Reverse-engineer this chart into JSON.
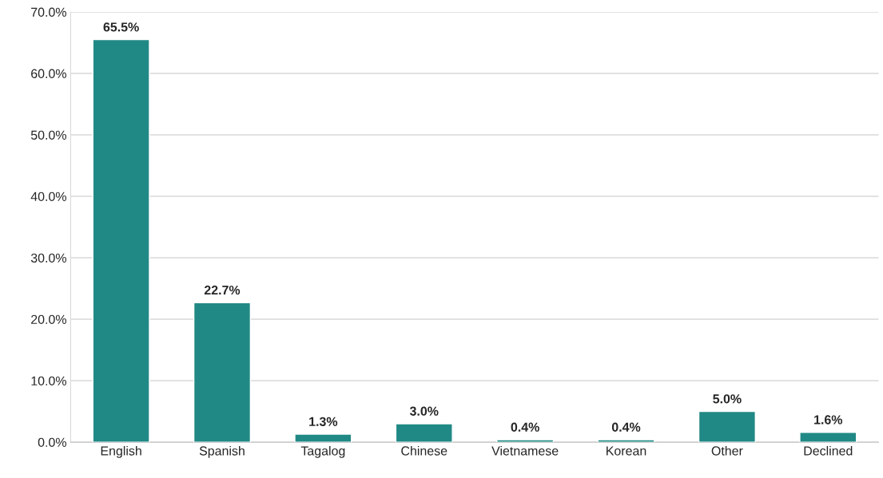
{
  "chart_data": {
    "type": "bar",
    "categories": [
      "English",
      "Spanish",
      "Tagalog",
      "Chinese",
      "Vietnamese",
      "Korean",
      "Other",
      "Declined"
    ],
    "values": [
      65.5,
      22.7,
      1.3,
      3.0,
      0.4,
      0.4,
      5.0,
      1.6
    ],
    "value_labels": [
      "65.5%",
      "22.7%",
      "1.3%",
      "3.0%",
      "0.4%",
      "0.4%",
      "5.0%",
      "1.6%"
    ],
    "color": "#218985",
    "ylim": [
      0,
      70
    ],
    "yticks": [
      {
        "value": 0,
        "label": "0.0%"
      },
      {
        "value": 10,
        "label": "10.0%"
      },
      {
        "value": 20,
        "label": "20.0%"
      },
      {
        "value": 30,
        "label": "30.0%"
      },
      {
        "value": 40,
        "label": "40.0%"
      },
      {
        "value": 50,
        "label": "50.0%"
      },
      {
        "value": 60,
        "label": "60.0%"
      },
      {
        "value": 70,
        "label": "70.0%"
      }
    ],
    "grid": "y",
    "legend": false
  }
}
